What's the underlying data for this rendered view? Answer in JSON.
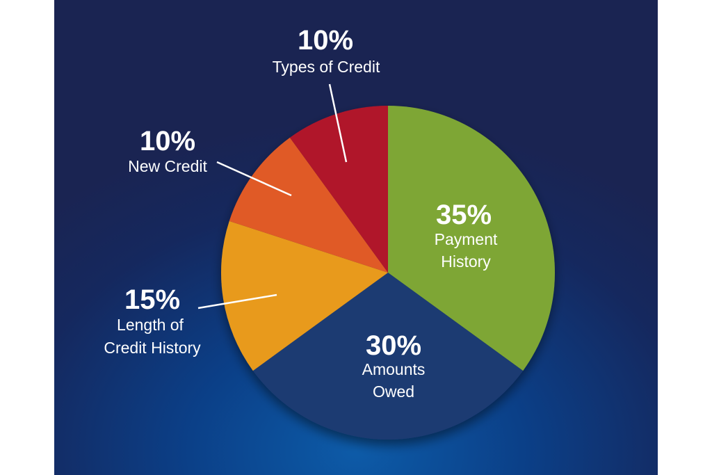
{
  "chart_data": {
    "type": "pie",
    "title": "",
    "slices": [
      {
        "percent_label": "35%",
        "value": 35,
        "label_lines": [
          "Payment",
          "History"
        ],
        "color": "#7ea636"
      },
      {
        "percent_label": "30%",
        "value": 30,
        "label_lines": [
          "Amounts",
          "Owed"
        ],
        "color": "#1f3b72"
      },
      {
        "percent_label": "15%",
        "value": 15,
        "label_lines": [
          "Length of",
          "Credit History"
        ],
        "color": "#e89a1e"
      },
      {
        "percent_label": "10%",
        "value": 10,
        "label_lines": [
          "New Credit"
        ],
        "color": "#e05a26"
      },
      {
        "percent_label": "10%",
        "value": 10,
        "label_lines": [
          "Types of Credit"
        ],
        "color": "#b0162b"
      }
    ]
  },
  "colors": {
    "background_dark": "#1a2452",
    "background_glow": "#0d5ba8",
    "label_text": "#ffffff"
  }
}
